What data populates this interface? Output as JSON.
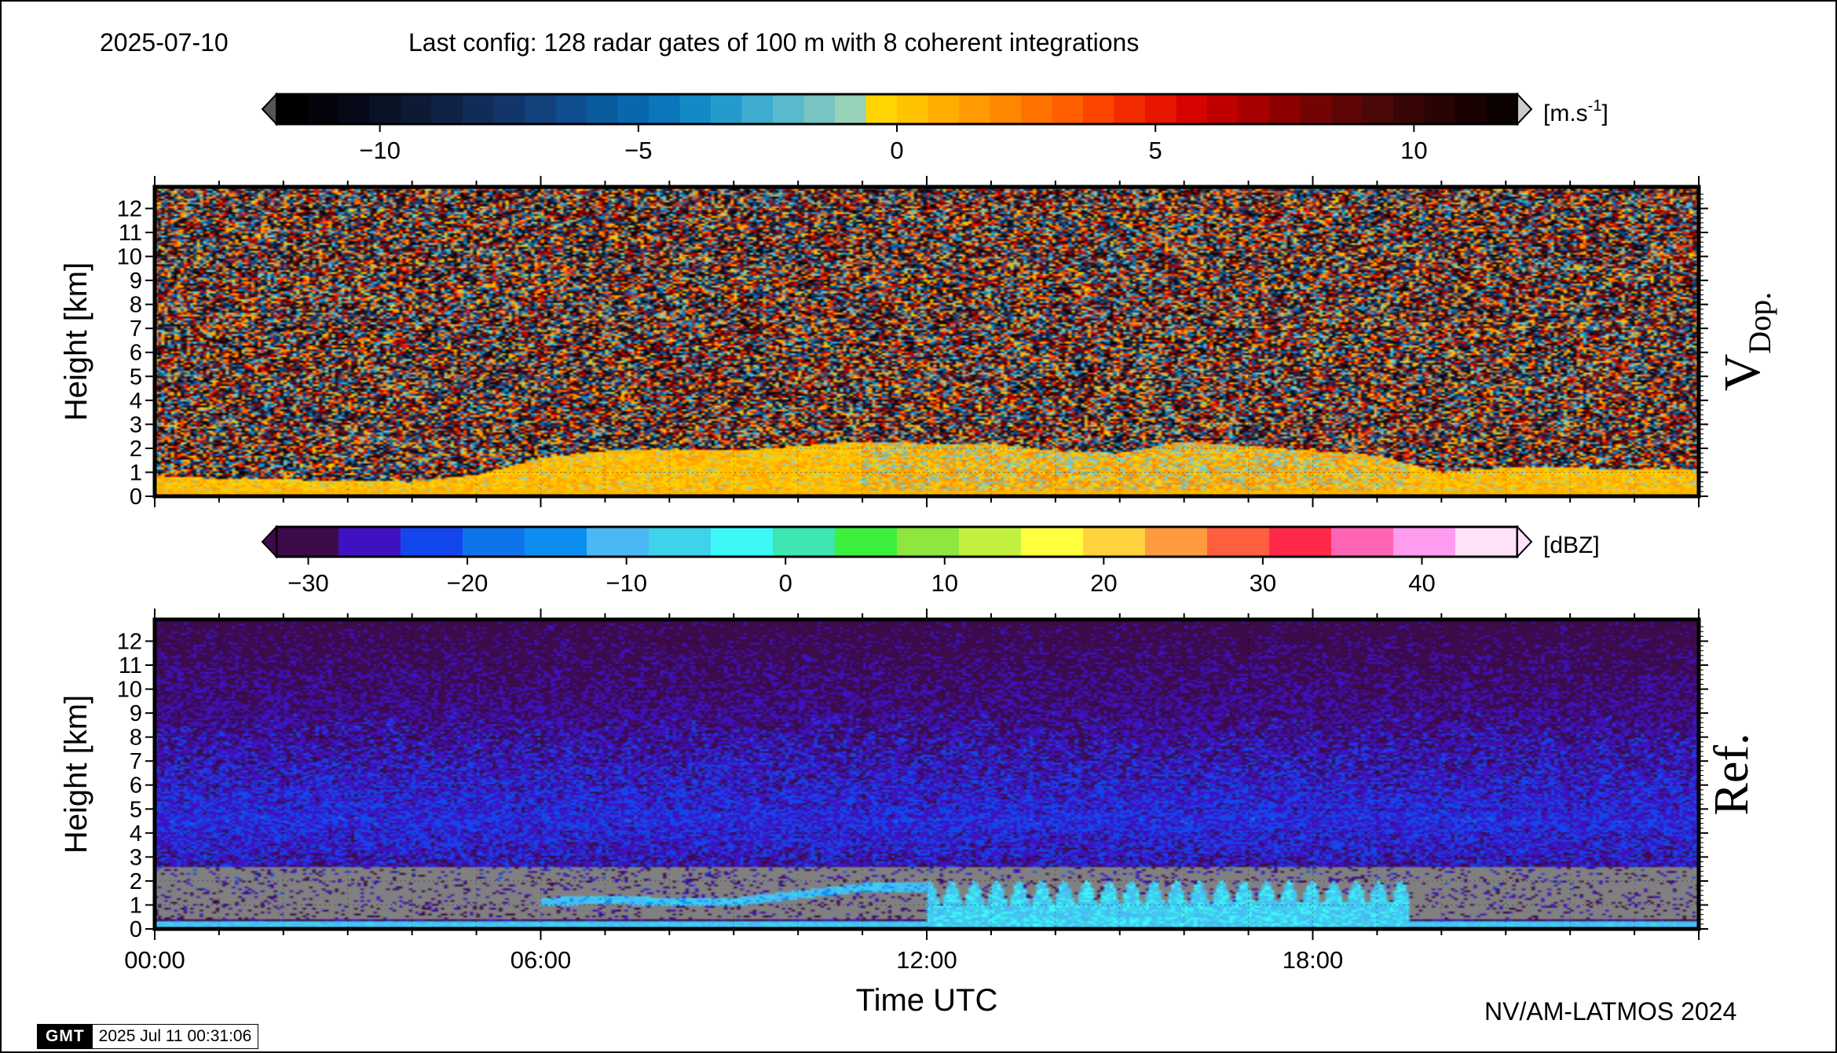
{
  "header": {
    "date": "2025-07-10",
    "config": "Last config: 128 radar gates of 100 m with 8 coherent integrations"
  },
  "footer": {
    "credit": "NV/AM-LATMOS 2024",
    "gmt_logo": "GMT",
    "timestamp": "2025 Jul 11 00:31:06"
  },
  "colorbars": {
    "velocity": {
      "unit": "m.s",
      "unit_exp": "-1",
      "range": [
        -12,
        12
      ],
      "ticks": [
        "−10",
        "−5",
        "0",
        "5",
        "10"
      ],
      "tick_values": [
        -10,
        -5,
        0,
        5,
        10
      ],
      "colors": [
        "#000000",
        "#03040c",
        "#060a18",
        "#0a1226",
        "#0d1a36",
        "#102246",
        "#122c58",
        "#13366a",
        "#12417c",
        "#0e4d8e",
        "#0a5a9e",
        "#0867ad",
        "#0a76bb",
        "#138ac6",
        "#259bcd",
        "#3eaccf",
        "#5ab9cc",
        "#77c4c3",
        "#96d2b8",
        "#ffd400",
        "#ffc200",
        "#ffae00",
        "#ff9a00",
        "#ff8700",
        "#ff7200",
        "#ff5e00",
        "#fb4500",
        "#f32b00",
        "#e81500",
        "#d60400",
        "#bf0000",
        "#a60000",
        "#8c0000",
        "#740404",
        "#5e0606",
        "#4a0808",
        "#380606",
        "#280404",
        "#1a0202",
        "#0c0101"
      ]
    },
    "reflectivity": {
      "unit": "dBZ",
      "range": [
        -32,
        46
      ],
      "ticks": [
        "−30",
        "−20",
        "−10",
        "0",
        "10",
        "20",
        "30",
        "40"
      ],
      "tick_values": [
        -30,
        -20,
        -10,
        0,
        10,
        20,
        30,
        40
      ],
      "colors": [
        "#3d0a4a",
        "#3e12c0",
        "#1446ee",
        "#0f74ec",
        "#0c8ef0",
        "#4ab8f4",
        "#3fd2ec",
        "#3ef8f8",
        "#3ee6b2",
        "#3ef03e",
        "#8ee63e",
        "#c2f03e",
        "#ffff3e",
        "#ffd23e",
        "#ff9a3e",
        "#ff5f3e",
        "#ff2a4a",
        "#ff64b4",
        "#ff9cf0",
        "#ffe2f8"
      ]
    }
  },
  "panels": {
    "velocity": {
      "ylabel": "Height [km]",
      "side_label_main": "V",
      "side_label_sub": "Dop."
    },
    "reflectivity": {
      "ylabel": "Height [km]",
      "side_label": "Ref.",
      "xlabel": "Time UTC"
    }
  },
  "chart_data": [
    {
      "type": "heatmap",
      "title": "",
      "variable": "Doppler velocity",
      "unit": "m.s-1",
      "xlabel": "",
      "ylabel": "Height [km]",
      "xlim_hours": [
        0,
        24
      ],
      "ylim_km": [
        0,
        12.9
      ],
      "y_ticks": [
        "0",
        "1",
        "2",
        "3",
        "4",
        "5",
        "6",
        "7",
        "8",
        "9",
        "10",
        "11",
        "12"
      ],
      "colorbar_range": [
        -12,
        12
      ],
      "grid": true,
      "echo_top_km": {
        "hours": [
          0,
          4,
          5,
          6,
          7,
          8,
          9,
          10,
          11,
          12,
          13,
          14,
          15,
          16,
          17,
          18,
          19,
          20,
          21,
          22,
          23,
          24
        ],
        "values": [
          0.8,
          0.6,
          0.9,
          1.6,
          1.9,
          1.9,
          1.9,
          2.1,
          2.3,
          2.2,
          2.2,
          1.9,
          1.8,
          2.3,
          2.1,
          1.9,
          1.7,
          1.0,
          1.2,
          1.2,
          1.1,
          1.1
        ]
      },
      "description_values": {
        "boundary_layer_velocity_range": [
          -2,
          2
        ],
        "noise_above_echo": "random"
      }
    },
    {
      "type": "heatmap",
      "title": "",
      "variable": "Reflectivity",
      "unit": "dBZ",
      "xlabel": "Time UTC",
      "ylabel": "Height [km]",
      "xlim_hours": [
        0,
        24
      ],
      "x_ticks": [
        "00:00",
        "06:00",
        "12:00",
        "18:00"
      ],
      "x_tick_hours": [
        0,
        6,
        12,
        18
      ],
      "ylim_km": [
        0,
        12.9
      ],
      "y_ticks": [
        "0",
        "1",
        "2",
        "3",
        "4",
        "5",
        "6",
        "7",
        "8",
        "9",
        "10",
        "11",
        "12"
      ],
      "colorbar_range": [
        -32,
        46
      ],
      "grid": true,
      "masked_layer_km": [
        0.4,
        2.6
      ],
      "cloud_layer": {
        "hours": [
          6,
          7,
          8,
          9,
          10,
          11,
          12
        ],
        "top_km": [
          1.3,
          1.4,
          1.3,
          1.3,
          1.6,
          1.9,
          1.9
        ]
      },
      "convective_plumes_hours": [
        12,
        19.5
      ],
      "plume_top_km": 2.0
    }
  ]
}
